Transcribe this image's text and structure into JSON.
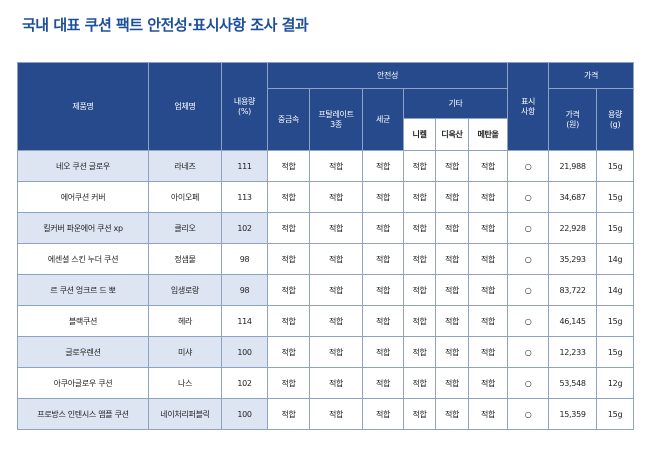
{
  "title": "국내 대표 쿠션 팩트 안전성·표시사항 조사 결과",
  "headers": {
    "product": "제품명",
    "company": "업체명",
    "volume": "내용량\n(%)",
    "safety": "안전성",
    "heavy_metal": "중금속",
    "phthalate": "프탈레이트\n3종",
    "bacteria": "세균",
    "other": "기타",
    "nickel": "니켈",
    "dioxane": "디옥산",
    "methanol": "메탄올",
    "labeling": "표시\n사항",
    "price_group": "가격",
    "price": "가격\n(원)",
    "capacity": "용량\n(g)"
  },
  "rows": [
    {
      "product": "네오 쿠션 글로우",
      "company": "라네즈",
      "volume": "111",
      "heavy_metal": "적합",
      "phthalate": "적합",
      "bacteria": "적합",
      "nickel": "적합",
      "dioxane": "적합",
      "methanol": "적합",
      "labeling": "○",
      "price": "21,988",
      "capacity": "15g"
    },
    {
      "product": "에어쿠션 커버",
      "company": "아이오페",
      "volume": "113",
      "heavy_metal": "적합",
      "phthalate": "적합",
      "bacteria": "적합",
      "nickel": "적합",
      "dioxane": "적합",
      "methanol": "적합",
      "labeling": "○",
      "price": "34,687",
      "capacity": "15g"
    },
    {
      "product": "킬커버 파운에어 쿠션 xp",
      "company": "클리오",
      "volume": "102",
      "heavy_metal": "적합",
      "phthalate": "적합",
      "bacteria": "적합",
      "nickel": "적합",
      "dioxane": "적합",
      "methanol": "적합",
      "labeling": "○",
      "price": "22,928",
      "capacity": "15g"
    },
    {
      "product": "에센셜 스킨 누더 쿠션",
      "company": "정샘물",
      "volume": "98",
      "heavy_metal": "적합",
      "phthalate": "적합",
      "bacteria": "적합",
      "nickel": "적합",
      "dioxane": "적합",
      "methanol": "적합",
      "labeling": "○",
      "price": "35,293",
      "capacity": "14g"
    },
    {
      "product": "르 쿠션 엉크르 드 뽀",
      "company": "입생로랑",
      "volume": "98",
      "heavy_metal": "적합",
      "phthalate": "적합",
      "bacteria": "적합",
      "nickel": "적합",
      "dioxane": "적합",
      "methanol": "적합",
      "labeling": "○",
      "price": "83,722",
      "capacity": "14g"
    },
    {
      "product": "블랙쿠션",
      "company": "헤라",
      "volume": "114",
      "heavy_metal": "적합",
      "phthalate": "적합",
      "bacteria": "적합",
      "nickel": "적합",
      "dioxane": "적합",
      "methanol": "적합",
      "labeling": "○",
      "price": "46,145",
      "capacity": "15g"
    },
    {
      "product": "글로우렌션",
      "company": "미샤",
      "volume": "100",
      "heavy_metal": "적합",
      "phthalate": "적합",
      "bacteria": "적합",
      "nickel": "적합",
      "dioxane": "적합",
      "methanol": "적합",
      "labeling": "○",
      "price": "12,233",
      "capacity": "15g"
    },
    {
      "product": "아쿠아글로우 쿠션",
      "company": "나스",
      "volume": "102",
      "heavy_metal": "적합",
      "phthalate": "적합",
      "bacteria": "적합",
      "nickel": "적합",
      "dioxane": "적합",
      "methanol": "적합",
      "labeling": "○",
      "price": "53,548",
      "capacity": "12g"
    },
    {
      "product": "프로방스 인텐시스 앰플 쿠션",
      "company": "네이처리퍼블릭",
      "volume": "100",
      "heavy_metal": "적합",
      "phthalate": "적합",
      "bacteria": "적합",
      "nickel": "적합",
      "dioxane": "적합",
      "methanol": "적합",
      "labeling": "○",
      "price": "15,359",
      "capacity": "15g"
    }
  ]
}
